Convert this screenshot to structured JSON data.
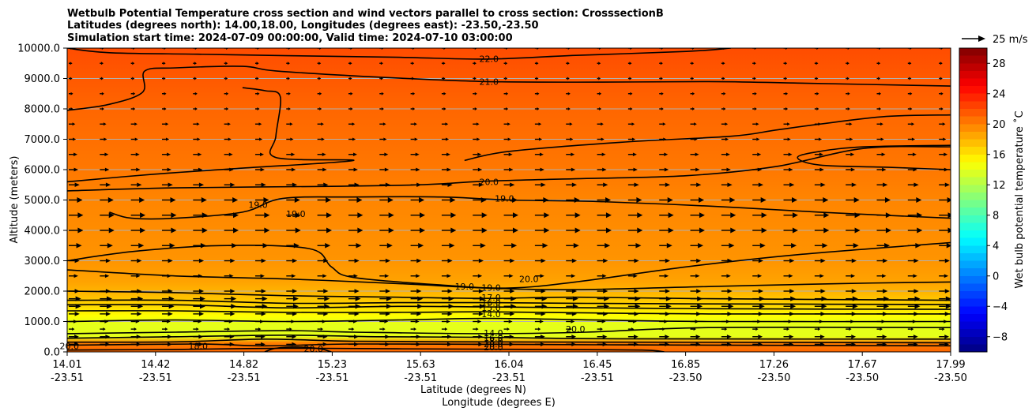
{
  "chart_data": {
    "type": "heatmap",
    "title_lines": [
      "Wetbulb Potential Temperature cross section and wind vectors parallel to cross section: CrosssectionB",
      "Latitudes (degrees north): 14.00,18.00, Longitudes (degrees east): -23.50,-23.50",
      "Simulation start time: 2024-07-09 00:00:00, Valid time: 2024-07-10 03:00:00"
    ],
    "xlabel_lines": [
      "Latitude (degrees N)",
      "Longitude (degrees E)"
    ],
    "ylabel": "Altitude (meters)",
    "x_range": [
      14.01,
      17.99
    ],
    "y_range": [
      0,
      10000
    ],
    "x_ticks": [
      {
        "lat": "14.01",
        "lon": "-23.51"
      },
      {
        "lat": "14.42",
        "lon": "-23.51"
      },
      {
        "lat": "14.82",
        "lon": "-23.51"
      },
      {
        "lat": "15.23",
        "lon": "-23.51"
      },
      {
        "lat": "15.63",
        "lon": "-23.51"
      },
      {
        "lat": "16.04",
        "lon": "-23.51"
      },
      {
        "lat": "16.45",
        "lon": "-23.51"
      },
      {
        "lat": "16.85",
        "lon": "-23.50"
      },
      {
        "lat": "17.26",
        "lon": "-23.50"
      },
      {
        "lat": "17.67",
        "lon": "-23.50"
      },
      {
        "lat": "17.99",
        "lon": "-23.50"
      }
    ],
    "y_ticks": [
      "0.0",
      "1000.0",
      "2000.0",
      "3000.0",
      "4000.0",
      "5000.0",
      "6000.0",
      "7000.0",
      "8000.0",
      "9000.0",
      "10000.0"
    ],
    "y_tick_values": [
      0,
      1000,
      2000,
      3000,
      4000,
      5000,
      6000,
      7000,
      8000,
      9000,
      10000
    ],
    "colorbar": {
      "label": "Wet bulb potential temperature ˚C",
      "range": [
        -10,
        30
      ],
      "ticks": [
        "−8",
        "−4",
        "0",
        "4",
        "8",
        "12",
        "16",
        "20",
        "24",
        "28"
      ],
      "tick_values": [
        -8,
        -4,
        0,
        4,
        8,
        12,
        16,
        20,
        24,
        28
      ]
    },
    "quiver_key": "25 m/s",
    "field_profile": [
      {
        "alt": 0,
        "value": 21.0
      },
      {
        "alt": 300,
        "value": 20.0
      },
      {
        "alt": 500,
        "value": 14.0
      },
      {
        "alt": 900,
        "value": 14.0
      },
      {
        "alt": 1200,
        "value": 15.0
      },
      {
        "alt": 1500,
        "value": 16.5
      },
      {
        "alt": 1900,
        "value": 17.8
      },
      {
        "alt": 2300,
        "value": 18.6
      },
      {
        "alt": 3000,
        "value": 19.2
      },
      {
        "alt": 5000,
        "value": 19.8
      },
      {
        "alt": 6000,
        "value": 20.3
      },
      {
        "alt": 8000,
        "value": 21.0
      },
      {
        "alt": 10000,
        "value": 22.0
      }
    ],
    "contours": [
      {
        "label": "22.0",
        "points": [
          [
            14.01,
            10000
          ],
          [
            14.2,
            9850
          ],
          [
            14.6,
            9800
          ],
          [
            15.0,
            9750
          ],
          [
            15.5,
            9700
          ],
          [
            15.9,
            9640
          ],
          [
            16.3,
            9760
          ],
          [
            16.8,
            9890
          ],
          [
            17.0,
            10000
          ]
        ]
      },
      {
        "label": "21.0",
        "points": [
          [
            14.01,
            7950
          ],
          [
            14.2,
            8150
          ],
          [
            14.35,
            8550
          ],
          [
            14.36,
            9250
          ],
          [
            14.5,
            9350
          ],
          [
            14.8,
            9400
          ],
          [
            14.95,
            9250
          ],
          [
            15.4,
            9050
          ],
          [
            15.9,
            8900
          ],
          [
            16.4,
            8880
          ],
          [
            16.9,
            8900
          ],
          [
            17.3,
            8850
          ],
          [
            17.99,
            8750
          ]
        ]
      },
      {
        "label": "21.0",
        "points": [
          [
            14.01,
            5600
          ],
          [
            14.4,
            5850
          ],
          [
            14.8,
            6050
          ],
          [
            15.3,
            6300
          ],
          [
            14.95,
            6400
          ],
          [
            14.95,
            7100
          ],
          [
            14.97,
            8400
          ],
          [
            14.9,
            8600
          ],
          [
            14.8,
            8700
          ]
        ]
      },
      {
        "label": "20.0",
        "points": [
          [
            14.01,
            5300
          ],
          [
            14.5,
            5400
          ],
          [
            15.2,
            5450
          ],
          [
            15.6,
            5500
          ],
          [
            15.9,
            5620
          ],
          [
            16.3,
            5700
          ],
          [
            16.8,
            5800
          ],
          [
            17.2,
            6100
          ],
          [
            17.6,
            6700
          ],
          [
            17.99,
            6750
          ]
        ]
      },
      {
        "label": "20.0",
        "points": [
          [
            17.99,
            7800
          ],
          [
            17.7,
            7750
          ],
          [
            17.4,
            7500
          ],
          [
            17.2,
            7300
          ],
          [
            17.0,
            7100
          ],
          [
            16.5,
            6900
          ],
          [
            16.0,
            6600
          ],
          [
            15.8,
            6300
          ]
        ]
      },
      {
        "label": "20.0",
        "points": [
          [
            17.99,
            6000
          ],
          [
            17.7,
            6080
          ],
          [
            17.4,
            6150
          ],
          [
            17.3,
            6400
          ],
          [
            17.4,
            6600
          ],
          [
            17.6,
            6750
          ],
          [
            17.99,
            6800
          ]
        ]
      },
      {
        "label": "19.0",
        "points": [
          [
            14.2,
            4600
          ],
          [
            14.3,
            4400
          ],
          [
            14.5,
            4400
          ],
          [
            14.8,
            4600
          ],
          [
            14.98,
            5050
          ],
          [
            15.3,
            5100
          ],
          [
            15.7,
            5100
          ],
          [
            16.0,
            5000
          ],
          [
            16.4,
            4950
          ],
          [
            16.9,
            4800
          ],
          [
            17.4,
            4600
          ],
          [
            17.99,
            4400
          ]
        ]
      },
      {
        "label": "19.0",
        "points": [
          [
            14.01,
            3000
          ],
          [
            14.3,
            3300
          ],
          [
            14.7,
            3500
          ],
          [
            15.1,
            3400
          ],
          [
            15.2,
            2800
          ],
          [
            15.3,
            2450
          ],
          [
            15.7,
            2200
          ],
          [
            16.0,
            2100
          ],
          [
            16.3,
            2300
          ],
          [
            16.8,
            2800
          ],
          [
            17.3,
            3200
          ],
          [
            17.99,
            3600
          ]
        ]
      },
      {
        "label": "19.0",
        "points": [
          [
            14.01,
            2700
          ],
          [
            14.5,
            2500
          ],
          [
            15.0,
            2400
          ],
          [
            15.5,
            2250
          ],
          [
            15.9,
            2100
          ],
          [
            16.3,
            2050
          ],
          [
            16.9,
            2150
          ],
          [
            17.5,
            2250
          ],
          [
            17.99,
            2300
          ]
        ]
      },
      {
        "label": "18.0",
        "points": [
          [
            14.01,
            2000
          ],
          [
            14.5,
            1950
          ],
          [
            15.0,
            1850
          ],
          [
            15.5,
            1800
          ],
          [
            15.9,
            1760
          ],
          [
            16.3,
            1800
          ],
          [
            16.9,
            1750
          ],
          [
            17.99,
            1700
          ]
        ]
      },
      {
        "label": "17.0",
        "points": [
          [
            14.01,
            1700
          ],
          [
            14.5,
            1700
          ],
          [
            15.0,
            1600
          ],
          [
            15.5,
            1620
          ],
          [
            15.9,
            1620
          ],
          [
            16.3,
            1600
          ],
          [
            16.9,
            1580
          ],
          [
            17.99,
            1560
          ]
        ]
      },
      {
        "label": "16.0",
        "points": [
          [
            14.01,
            1550
          ],
          [
            14.5,
            1550
          ],
          [
            15.0,
            1450
          ],
          [
            15.5,
            1500
          ],
          [
            15.9,
            1480
          ],
          [
            16.4,
            1450
          ],
          [
            16.9,
            1420
          ],
          [
            17.99,
            1400
          ]
        ]
      },
      {
        "label": "15.0",
        "points": [
          [
            14.01,
            1350
          ],
          [
            14.5,
            1350
          ],
          [
            15.0,
            1300
          ],
          [
            15.5,
            1300
          ],
          [
            15.9,
            1320
          ],
          [
            16.4,
            1280
          ],
          [
            16.9,
            1250
          ],
          [
            17.99,
            1250
          ]
        ]
      },
      {
        "label": "14.0",
        "points": [
          [
            14.01,
            1000
          ],
          [
            14.5,
            1050
          ],
          [
            15.0,
            1000
          ],
          [
            15.5,
            1050
          ],
          [
            15.9,
            1100
          ],
          [
            16.4,
            1050
          ],
          [
            16.9,
            1000
          ],
          [
            17.99,
            1000
          ]
        ]
      },
      {
        "label": "14.0",
        "points": [
          [
            14.01,
            600
          ],
          [
            14.5,
            650
          ],
          [
            15.0,
            700
          ],
          [
            15.3,
            650
          ],
          [
            15.9,
            600
          ],
          [
            16.35,
            650
          ],
          [
            16.9,
            800
          ],
          [
            17.99,
            800
          ]
        ]
      },
      {
        "label": "16.0",
        "points": [
          [
            14.01,
            450
          ],
          [
            14.5,
            500
          ],
          [
            15.0,
            550
          ],
          [
            15.4,
            500
          ],
          [
            15.9,
            480
          ],
          [
            16.5,
            430
          ],
          [
            17.99,
            420
          ]
        ]
      },
      {
        "label": "18.0",
        "points": [
          [
            14.01,
            320
          ],
          [
            14.5,
            330
          ],
          [
            14.9,
            420
          ],
          [
            15.3,
            350
          ],
          [
            15.9,
            330
          ],
          [
            16.5,
            320
          ],
          [
            17.99,
            300
          ]
        ]
      },
      {
        "label": "20.0",
        "points": [
          [
            14.01,
            220
          ],
          [
            14.6,
            260
          ],
          [
            14.9,
            200
          ],
          [
            15.3,
            260
          ],
          [
            15.9,
            250
          ],
          [
            16.5,
            230
          ],
          [
            17.99,
            200
          ]
        ]
      },
      {
        "label": "20.0",
        "points": [
          [
            14.9,
            0
          ],
          [
            14.95,
            120
          ],
          [
            15.05,
            160
          ],
          [
            15.15,
            100
          ],
          [
            15.2,
            0
          ]
        ]
      },
      {
        "label": "20.0",
        "points": [
          [
            14.01,
            60
          ],
          [
            14.5,
            80
          ],
          [
            15.0,
            120
          ],
          [
            15.5,
            100
          ],
          [
            16.2,
            80
          ],
          [
            16.6,
            60
          ],
          [
            16.7,
            0
          ]
        ]
      }
    ],
    "contour_labels": [
      {
        "text": "22.0",
        "x": 15.91,
        "y": 9650
      },
      {
        "text": "21.0",
        "x": 15.91,
        "y": 8900
      },
      {
        "text": "20.0",
        "x": 15.91,
        "y": 5600
      },
      {
        "text": "19.0",
        "x": 15.98,
        "y": 5050
      },
      {
        "text": "19.0",
        "x": 14.87,
        "y": 4850
      },
      {
        "text": "19:0",
        "x": 15.04,
        "y": 4550
      },
      {
        "text": "19.0",
        "x": 15.8,
        "y": 2150
      },
      {
        "text": "19.0",
        "x": 15.92,
        "y": 2120
      },
      {
        "text": "20.0",
        "x": 16.09,
        "y": 2400
      },
      {
        "text": "17.0",
        "x": 15.92,
        "y": 1790
      },
      {
        "text": "16.0",
        "x": 15.92,
        "y": 1620
      },
      {
        "text": "15.0",
        "x": 15.92,
        "y": 1450
      },
      {
        "text": "14.0",
        "x": 15.92,
        "y": 1250
      },
      {
        "text": "14.0",
        "x": 15.93,
        "y": 620
      },
      {
        "text": "16.0",
        "x": 15.93,
        "y": 470
      },
      {
        "text": "18.0",
        "x": 15.93,
        "y": 350
      },
      {
        "text": "20.0",
        "x": 15.93,
        "y": 260
      },
      {
        "text": "20.0",
        "x": 15.93,
        "y": 160
      },
      {
        "text": "18.0",
        "x": 14.6,
        "y": 200
      },
      {
        "text": "20.0",
        "x": 15.12,
        "y": 100
      },
      {
        "text": "20.0",
        "x": 14.02,
        "y": 200
      },
      {
        "text": "20.0",
        "x": 16.3,
        "y": 750
      }
    ],
    "wind": {
      "x": [
        14.01,
        14.15,
        14.29,
        14.43,
        14.57,
        14.71,
        14.85,
        14.99,
        15.13,
        15.27,
        15.41,
        15.55,
        15.69,
        15.83,
        15.97,
        16.11,
        16.25,
        16.39,
        16.53,
        16.67,
        16.81,
        16.95,
        17.09,
        17.23,
        17.37,
        17.51,
        17.65,
        17.79,
        17.93
      ],
      "altitudes": [
        250,
        500,
        750,
        1000,
        1250,
        1500,
        1750,
        2000,
        2500,
        3000,
        3500,
        4000,
        4500,
        5000,
        5500,
        6000,
        6500,
        7000,
        7500,
        8000,
        8500,
        9000,
        9500,
        10000
      ],
      "speeds_ms": [
        14,
        14,
        8,
        12,
        15,
        17,
        17,
        15,
        13,
        15,
        18,
        20,
        20,
        19,
        15,
        13,
        12,
        10,
        9,
        6,
        6,
        5,
        5,
        6
      ]
    }
  }
}
